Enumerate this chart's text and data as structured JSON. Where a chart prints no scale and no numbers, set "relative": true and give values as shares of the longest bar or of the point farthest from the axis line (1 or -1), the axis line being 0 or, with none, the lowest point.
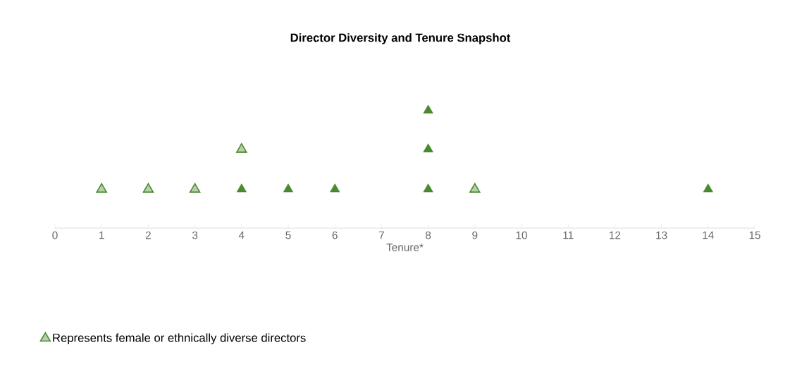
{
  "chart_data": {
    "type": "scatter",
    "title": "Director Diversity and Tenure Snapshot",
    "xlabel": "Tenure*",
    "xlim": [
      0,
      15
    ],
    "xticks": [
      0,
      1,
      2,
      3,
      4,
      5,
      6,
      7,
      8,
      9,
      10,
      11,
      12,
      13,
      14,
      15
    ],
    "relative": true,
    "tick_labels": "x",
    "marker": "triangle",
    "legend": "bottom left",
    "series": [
      {
        "color": "#4a8a2f",
        "x": [
          4,
          5,
          6,
          8,
          8,
          8,
          14
        ],
        "values": [
          0.33,
          0.33,
          0.33,
          0.33,
          0.67,
          1,
          0.33
        ]
      },
      {
        "name": "Represents female or ethnically diverse directors",
        "color": "#4a8a2f",
        "x": [
          1,
          2,
          3,
          4,
          9
        ],
        "values": [
          0.33,
          0.33,
          0.33,
          0.67,
          0.33
        ]
      }
    ]
  }
}
